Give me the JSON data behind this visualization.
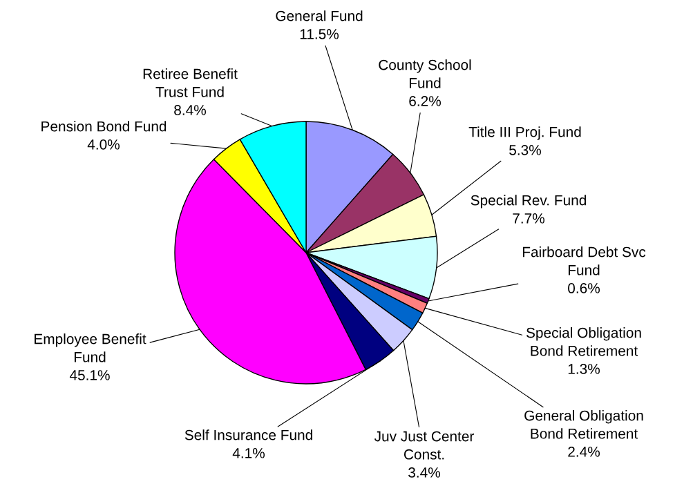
{
  "chart_data": {
    "type": "pie",
    "categories": [
      "General Fund",
      "County School\nFund",
      "Title III Proj. Fund",
      "Special Rev. Fund",
      "Fairboard Debt Svc\nFund",
      "Special Obligation\nBond Retirement",
      "General Obligation\nBond Retirement",
      "Juv Just Center\nConst.",
      "Self Insurance Fund",
      "Employee Benefit\nFund",
      "Pension Bond Fund",
      "Retiree Benefit\nTrust Fund"
    ],
    "values": [
      11.5,
      6.2,
      5.3,
      7.7,
      0.6,
      1.3,
      2.4,
      3.4,
      4.1,
      45.1,
      4.0,
      8.4
    ],
    "value_labels": [
      "11.5%",
      "6.2%",
      "5.3%",
      "7.7%",
      "0.6%",
      "1.3%",
      "2.4%",
      "3.4%",
      "4.1%",
      "45.1%",
      "4.0%",
      "8.4%"
    ],
    "colors": [
      "#9999ff",
      "#993366",
      "#ffffcc",
      "#ccffff",
      "#660066",
      "#ff8080",
      "#0066cc",
      "#ccccff",
      "#000080",
      "#ff00ff",
      "#ffff00",
      "#00ffff"
    ],
    "legend": false
  }
}
